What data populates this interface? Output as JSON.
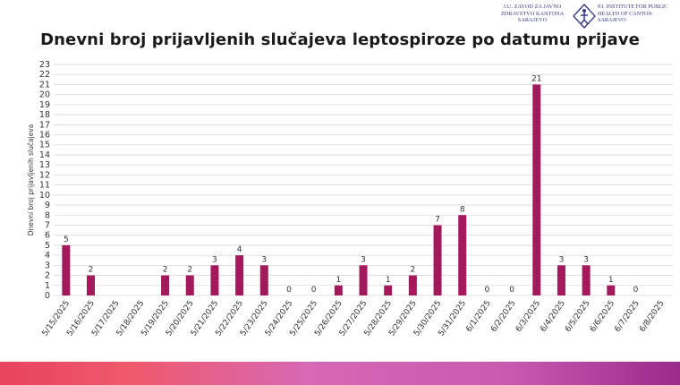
{
  "header": {
    "logo_left": [
      "J.U. ZAVOD ZA JAVNO",
      "ZDRAVSTVO KANTONA",
      "SARAJEVO"
    ],
    "logo_right": [
      "P.I. INSTITUTE FOR PUBLIC",
      "HEALTH OF CANTON",
      "SARAJEVO"
    ]
  },
  "colors": {
    "bar": "#a3195b",
    "grid": "#d9d9d9",
    "band_start": "#e8435f",
    "band_end": "#9a2a8c"
  },
  "chart_data": {
    "type": "bar",
    "title": "Dnevni broj prijavljenih slučajeva leptospiroze po datumu prijave",
    "xlabel": "",
    "ylabel": "Dnevni broj prijavljenih slučajeva",
    "ylim": [
      0,
      23
    ],
    "yticks": [
      0,
      1,
      2,
      3,
      4,
      5,
      6,
      7,
      8,
      9,
      10,
      11,
      12,
      13,
      14,
      15,
      16,
      17,
      18,
      19,
      20,
      21,
      22,
      23
    ],
    "grid": true,
    "categories": [
      "5/15/2025",
      "5/16/2025",
      "5/17/2025",
      "5/18/2025",
      "5/19/2025",
      "5/20/2025",
      "5/21/2025",
      "5/22/2025",
      "5/23/2025",
      "5/24/2025",
      "5/25/2025",
      "5/26/2025",
      "5/27/2025",
      "5/28/2025",
      "5/29/2025",
      "5/30/2025",
      "5/31/2025",
      "6/1/2025",
      "6/2/2025",
      "6/3/2025",
      "6/4/2025",
      "6/5/2025",
      "6/6/2025",
      "6/7/2025",
      "6/8/2025"
    ],
    "values": [
      5,
      2,
      null,
      null,
      2,
      2,
      3,
      4,
      3,
      0,
      0,
      1,
      3,
      1,
      2,
      7,
      8,
      0,
      0,
      21,
      3,
      3,
      1,
      0,
      null
    ],
    "data_labels": [
      "5",
      "2",
      "",
      "",
      "2",
      "2",
      "3",
      "4",
      "3",
      "0",
      "0",
      "1",
      "3",
      "1",
      "2",
      "7",
      "8",
      "0",
      "0",
      "21",
      "3",
      "3",
      "1",
      "0",
      ""
    ]
  }
}
